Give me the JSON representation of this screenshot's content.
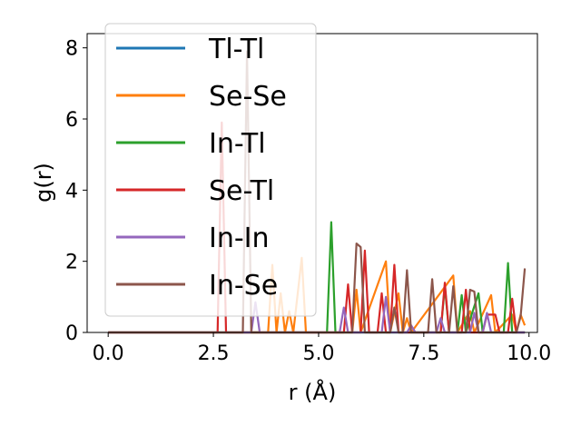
{
  "chart_data": {
    "type": "line",
    "title": "",
    "xlabel": "r (Å)",
    "ylabel": "g(r)",
    "xlim": [
      -0.5,
      10.2
    ],
    "ylim": [
      0,
      8.4
    ],
    "xticks": [
      "0.0",
      "2.5",
      "5.0",
      "7.5",
      "10.0"
    ],
    "yticks": [
      "0",
      "2",
      "4",
      "6",
      "8"
    ],
    "grid": false,
    "legend_position": "top-left",
    "series": [
      {
        "name": "Tl-Tl",
        "color": "#1f77b4",
        "points": [
          [
            0,
            0
          ],
          [
            9.9,
            0
          ]
        ]
      },
      {
        "name": "Se-Se",
        "color": "#ff7f0e",
        "points": [
          [
            0,
            0
          ],
          [
            3.8,
            0
          ],
          [
            3.9,
            1.9
          ],
          [
            4.0,
            0
          ],
          [
            4.1,
            1.1
          ],
          [
            4.2,
            0
          ],
          [
            4.3,
            0.6
          ],
          [
            4.4,
            0
          ],
          [
            4.6,
            2.1
          ],
          [
            4.7,
            0
          ],
          [
            5.8,
            0
          ],
          [
            5.9,
            1.2
          ],
          [
            6.0,
            0
          ],
          [
            6.6,
            2.0
          ],
          [
            6.7,
            0
          ],
          [
            6.9,
            1.1
          ],
          [
            7.0,
            0
          ],
          [
            7.1,
            0.4
          ],
          [
            7.2,
            0
          ],
          [
            8.2,
            1.6
          ],
          [
            8.3,
            0
          ],
          [
            8.6,
            0.6
          ],
          [
            8.7,
            0
          ],
          [
            9.1,
            1.05
          ],
          [
            9.2,
            0
          ],
          [
            9.6,
            0.5
          ],
          [
            9.7,
            0
          ],
          [
            9.8,
            0.5
          ],
          [
            9.9,
            0.2
          ]
        ]
      },
      {
        "name": "In-Tl",
        "color": "#2ca02c",
        "points": [
          [
            0,
            0
          ],
          [
            5.2,
            0
          ],
          [
            5.3,
            3.1
          ],
          [
            5.4,
            0
          ],
          [
            7.9,
            0
          ],
          [
            8.0,
            1.3
          ],
          [
            8.1,
            0
          ],
          [
            8.3,
            0
          ],
          [
            8.4,
            1.05
          ],
          [
            8.5,
            0
          ],
          [
            8.8,
            1.1
          ],
          [
            8.9,
            0
          ],
          [
            9.4,
            0
          ],
          [
            9.5,
            1.95
          ],
          [
            9.6,
            0
          ],
          [
            9.9,
            0
          ]
        ]
      },
      {
        "name": "Se-Tl",
        "color": "#d62728",
        "points": [
          [
            0,
            0
          ],
          [
            2.6,
            0
          ],
          [
            2.7,
            5.9
          ],
          [
            2.8,
            0
          ],
          [
            5.6,
            0
          ],
          [
            5.7,
            1.35
          ],
          [
            5.8,
            0
          ],
          [
            6.0,
            0
          ],
          [
            6.1,
            2.3
          ],
          [
            6.2,
            0
          ],
          [
            6.4,
            0
          ],
          [
            6.5,
            1.1
          ],
          [
            6.6,
            0
          ],
          [
            6.7,
            0
          ],
          [
            6.8,
            1.9
          ],
          [
            6.9,
            0
          ],
          [
            7.9,
            0
          ],
          [
            8.0,
            1.4
          ],
          [
            8.1,
            0
          ],
          [
            8.4,
            0
          ],
          [
            8.5,
            1.2
          ],
          [
            8.6,
            0
          ],
          [
            8.9,
            0
          ],
          [
            9.0,
            0.5
          ],
          [
            9.2,
            0.5
          ],
          [
            9.3,
            0
          ],
          [
            9.5,
            0
          ],
          [
            9.6,
            0.95
          ],
          [
            9.7,
            0
          ],
          [
            9.9,
            0
          ]
        ]
      },
      {
        "name": "In-In",
        "color": "#9467bd",
        "points": [
          [
            0,
            0
          ],
          [
            3.4,
            0
          ],
          [
            3.5,
            0.85
          ],
          [
            3.6,
            0
          ],
          [
            5.5,
            0
          ],
          [
            5.6,
            0.7
          ],
          [
            5.7,
            0
          ],
          [
            6.5,
            0
          ],
          [
            6.6,
            1.0
          ],
          [
            6.7,
            0
          ],
          [
            7.1,
            0
          ],
          [
            7.2,
            0.2
          ],
          [
            7.3,
            0
          ],
          [
            7.8,
            0
          ],
          [
            7.9,
            0.4
          ],
          [
            8.0,
            0
          ],
          [
            8.6,
            0
          ],
          [
            8.7,
            0.55
          ],
          [
            8.8,
            0
          ],
          [
            8.9,
            0
          ],
          [
            9.0,
            0.55
          ],
          [
            9.1,
            0
          ],
          [
            9.9,
            0
          ]
        ]
      },
      {
        "name": "In-Se",
        "color": "#8c564b",
        "points": [
          [
            0,
            0
          ],
          [
            3.2,
            0
          ],
          [
            3.3,
            7.9
          ],
          [
            3.4,
            0
          ],
          [
            5.8,
            0
          ],
          [
            5.9,
            2.5
          ],
          [
            6.0,
            2.4
          ],
          [
            6.1,
            0
          ],
          [
            6.7,
            0
          ],
          [
            6.8,
            0.7
          ],
          [
            6.9,
            0
          ],
          [
            7.0,
            0
          ],
          [
            7.1,
            1.75
          ],
          [
            7.2,
            0
          ],
          [
            7.6,
            0
          ],
          [
            7.7,
            1.5
          ],
          [
            7.8,
            0
          ],
          [
            8.1,
            0
          ],
          [
            8.2,
            1.3
          ],
          [
            8.3,
            0
          ],
          [
            8.5,
            0
          ],
          [
            8.6,
            1.2
          ],
          [
            8.7,
            1.15
          ],
          [
            8.8,
            0
          ],
          [
            9.7,
            0
          ],
          [
            9.8,
            0.45
          ],
          [
            9.9,
            1.8
          ]
        ]
      }
    ]
  }
}
